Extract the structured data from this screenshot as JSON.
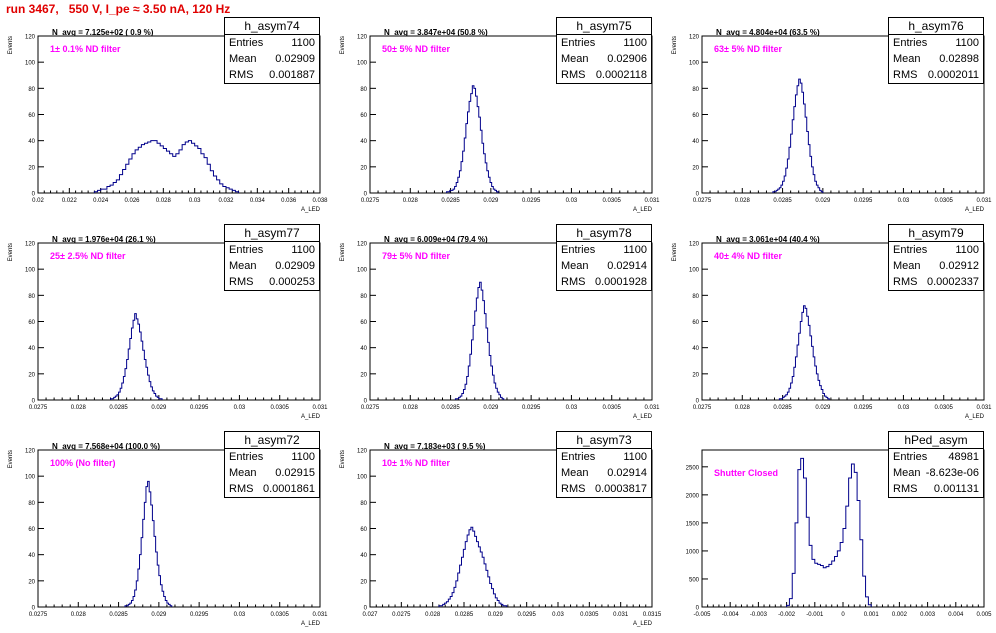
{
  "page": {
    "title": "run 3467,   550 V, I_pe ≈ 3.50 nA, 120 Hz"
  },
  "colors": {
    "histogram": "#00008b",
    "note": "#ff00ff",
    "title": "#e00000"
  },
  "chart_data": [
    {
      "type": "histogram",
      "name": "h_asym74",
      "navg": "N_avg = 7.125e+02 ( 0.9 %)",
      "note": "1± 0.1% ND filter",
      "stats": {
        "entries": "1100",
        "mean": "0.02909",
        "rms": "0.001887"
      },
      "ylabel": "Events",
      "xlabel": "A_LED",
      "xlim": [
        0.02,
        0.038
      ],
      "ylim": [
        0,
        120
      ],
      "xticks": [
        "0.02",
        "0.022",
        "0.024",
        "0.026",
        "0.028",
        "0.03",
        "0.032",
        "0.034",
        "0.036",
        "0.038"
      ],
      "yticks": [
        "0",
        "20",
        "40",
        "60",
        "80",
        "100",
        "120"
      ],
      "bins": {
        "x0": 0.0236,
        "width": 0.0002,
        "counts": [
          1,
          2,
          3,
          3,
          5,
          6,
          8,
          10,
          14,
          18,
          22,
          26,
          30,
          33,
          35,
          37,
          38,
          39,
          40,
          40,
          38,
          36,
          34,
          32,
          30,
          28,
          30,
          33,
          37,
          39,
          40,
          38,
          36,
          34,
          30,
          27,
          22,
          17,
          13,
          10,
          7,
          5,
          4,
          3,
          2,
          1
        ]
      }
    },
    {
      "type": "histogram",
      "name": "h_asym75",
      "navg": "N_avg = 3.847e+04 (50.8 %)",
      "note": "50± 5% ND filter",
      "stats": {
        "entries": "1100",
        "mean": "0.02906",
        "rms": "0.0002118"
      },
      "ylabel": "Events",
      "xlabel": "A_LED",
      "xlim": [
        0.0275,
        0.031
      ],
      "ylim": [
        0,
        120
      ],
      "xticks": [
        "0.0275",
        "0.028",
        "0.0285",
        "0.029",
        "0.0295",
        "0.03",
        "0.0305",
        "0.031"
      ],
      "yticks": [
        "0",
        "20",
        "40",
        "60",
        "80",
        "100",
        "120"
      ],
      "bins": {
        "x0": 0.02845,
        "width": 2e-05,
        "counts": [
          1,
          1,
          2,
          2,
          3,
          5,
          8,
          12,
          17,
          24,
          32,
          42,
          53,
          62,
          70,
          76,
          82,
          80,
          74,
          66,
          58,
          48,
          38,
          30,
          23,
          17,
          12,
          8,
          5,
          3,
          2,
          1
        ]
      }
    },
    {
      "type": "histogram",
      "name": "h_asym76",
      "navg": "N_avg = 4.804e+04 (63.5 %)",
      "note": "63± 5% ND filter",
      "stats": {
        "entries": "1100",
        "mean": "0.02898",
        "rms": "0.0002011"
      },
      "ylabel": "Events",
      "xlabel": "A_LED",
      "xlim": [
        0.0275,
        0.031
      ],
      "ylim": [
        0,
        120
      ],
      "xticks": [
        "0.0275",
        "0.028",
        "0.0285",
        "0.029",
        "0.0295",
        "0.03",
        "0.0305",
        "0.031"
      ],
      "yticks": [
        "0",
        "20",
        "40",
        "60",
        "80",
        "100",
        "120"
      ],
      "bins": {
        "x0": 0.02838,
        "width": 2e-05,
        "counts": [
          1,
          1,
          2,
          3,
          4,
          6,
          9,
          13,
          19,
          26,
          35,
          45,
          56,
          66,
          75,
          82,
          87,
          84,
          77,
          68,
          58,
          47,
          37,
          28,
          20,
          14,
          9,
          6,
          4,
          2,
          1
        ]
      }
    },
    {
      "type": "histogram",
      "name": "h_asym77",
      "navg": "N_avg = 1.976e+04 (26.1 %)",
      "note": "25± 2.5% ND filter",
      "stats": {
        "entries": "1100",
        "mean": "0.02909",
        "rms": "0.000253"
      },
      "ylabel": "Events",
      "xlabel": "A_LED",
      "xlim": [
        0.0275,
        0.031
      ],
      "ylim": [
        0,
        120
      ],
      "xticks": [
        "0.0275",
        "0.028",
        "0.0285",
        "0.029",
        "0.0295",
        "0.03",
        "0.0305",
        "0.031"
      ],
      "yticks": [
        "0",
        "20",
        "40",
        "60",
        "80",
        "100",
        "120"
      ],
      "bins": {
        "x0": 0.0284,
        "width": 2e-05,
        "counts": [
          1,
          1,
          2,
          3,
          4,
          6,
          9,
          13,
          18,
          24,
          31,
          39,
          47,
          55,
          61,
          66,
          62,
          58,
          52,
          45,
          38,
          31,
          25,
          19,
          14,
          10,
          7,
          5,
          3,
          2,
          1,
          1
        ]
      }
    },
    {
      "type": "histogram",
      "name": "h_asym78",
      "navg": "N_avg = 6.009e+04 (79.4 %)",
      "note": "79± 5% ND filter",
      "stats": {
        "entries": "1100",
        "mean": "0.02914",
        "rms": "0.0001928"
      },
      "ylabel": "Events",
      "xlabel": "A_LED",
      "xlim": [
        0.0275,
        0.031
      ],
      "ylim": [
        0,
        120
      ],
      "xticks": [
        "0.0275",
        "0.028",
        "0.0285",
        "0.029",
        "0.0295",
        "0.03",
        "0.0305",
        "0.031"
      ],
      "yticks": [
        "0",
        "20",
        "40",
        "60",
        "80",
        "100",
        "120"
      ],
      "bins": {
        "x0": 0.02856,
        "width": 2e-05,
        "counts": [
          1,
          1,
          2,
          3,
          5,
          8,
          12,
          18,
          26,
          35,
          46,
          57,
          68,
          78,
          86,
          90,
          84,
          76,
          66,
          55,
          44,
          34,
          26,
          19,
          13,
          9,
          6,
          4,
          2,
          1
        ]
      }
    },
    {
      "type": "histogram",
      "name": "h_asym79",
      "navg": "N_avg = 3.061e+04 (40.4 %)",
      "note": "40± 4% ND filter",
      "stats": {
        "entries": "1100",
        "mean": "0.02912",
        "rms": "0.0002337"
      },
      "ylabel": "Events",
      "xlabel": "A_LED",
      "xlim": [
        0.0275,
        0.031
      ],
      "ylim": [
        0,
        120
      ],
      "xticks": [
        "0.0275",
        "0.028",
        "0.0285",
        "0.029",
        "0.0295",
        "0.03",
        "0.0305",
        "0.031"
      ],
      "yticks": [
        "0",
        "20",
        "40",
        "60",
        "80",
        "100",
        "120"
      ],
      "bins": {
        "x0": 0.02846,
        "width": 2e-05,
        "counts": [
          1,
          1,
          2,
          3,
          4,
          6,
          9,
          13,
          18,
          25,
          33,
          42,
          51,
          60,
          67,
          72,
          70,
          64,
          57,
          49,
          41,
          33,
          26,
          20,
          15,
          11,
          8,
          5,
          3,
          2,
          1
        ]
      }
    },
    {
      "type": "histogram",
      "name": "h_asym72",
      "navg": "N_avg = 7.568e+04 (100.0 %)",
      "note": "100% (No filter)",
      "stats": {
        "entries": "1100",
        "mean": "0.02915",
        "rms": "0.0001861"
      },
      "ylabel": "Events",
      "xlabel": "A_LED",
      "xlim": [
        0.0275,
        0.031
      ],
      "ylim": [
        0,
        120
      ],
      "xticks": [
        "0.0275",
        "0.028",
        "0.0285",
        "0.029",
        "0.0295",
        "0.03",
        "0.0305",
        "0.031"
      ],
      "yticks": [
        "0",
        "20",
        "40",
        "60",
        "80",
        "100",
        "120"
      ],
      "bins": {
        "x0": 0.02858,
        "width": 2e-05,
        "counts": [
          1,
          1,
          2,
          3,
          5,
          8,
          13,
          20,
          29,
          40,
          53,
          67,
          80,
          92,
          96,
          88,
          78,
          66,
          54,
          42,
          32,
          24,
          17,
          12,
          8,
          5,
          3,
          2,
          1
        ]
      }
    },
    {
      "type": "histogram",
      "name": "h_asym73",
      "navg": "N_avg = 7.183e+03 ( 9.5 %)",
      "note": "10± 1% ND filter",
      "stats": {
        "entries": "1100",
        "mean": "0.02914",
        "rms": "0.0003817"
      },
      "ylabel": "Events",
      "xlabel": "A_LED",
      "xlim": [
        0.027,
        0.0315
      ],
      "ylim": [
        0,
        120
      ],
      "xticks": [
        "0.027",
        "0.0275",
        "0.028",
        "0.0285",
        "0.029",
        "0.0295",
        "0.03",
        "0.0305",
        "0.031",
        "0.0315"
      ],
      "yticks": [
        "0",
        "20",
        "40",
        "60",
        "80",
        "100",
        "120"
      ],
      "bins": {
        "x0": 0.0281,
        "width": 3e-05,
        "counts": [
          1,
          1,
          2,
          3,
          4,
          6,
          8,
          11,
          15,
          20,
          26,
          32,
          38,
          44,
          50,
          55,
          59,
          61,
          58,
          54,
          50,
          46,
          42,
          38,
          33,
          28,
          23,
          18,
          14,
          10,
          7,
          5,
          3,
          2,
          1,
          1
        ]
      }
    },
    {
      "type": "histogram",
      "name": "hPed_asym",
      "navg": "",
      "note": "Shutter Closed",
      "stats": {
        "entries": "48981",
        "mean": "-8.623e-06",
        "rms": "0.001131"
      },
      "ylabel": "",
      "xlabel": "",
      "xlim": [
        -0.005,
        0.005
      ],
      "ylim": [
        0,
        2800
      ],
      "xticks": [
        "-0.005",
        "-0.004",
        "-0.003",
        "-0.002",
        "-0.001",
        "0",
        "0.001",
        "0.002",
        "0.003",
        "0.004",
        "0.005"
      ],
      "yticks": [
        "0",
        "500",
        "1000",
        "1500",
        "2000",
        "2500"
      ],
      "bins": {
        "x0": -0.002,
        "width": 0.0001,
        "counts": [
          30,
          150,
          600,
          1500,
          2450,
          2650,
          2300,
          1600,
          1100,
          850,
          780,
          760,
          740,
          700,
          720,
          760,
          820,
          900,
          1000,
          1150,
          1400,
          1800,
          2300,
          2550,
          2400,
          1900,
          1200,
          550,
          180,
          40
        ]
      }
    }
  ]
}
